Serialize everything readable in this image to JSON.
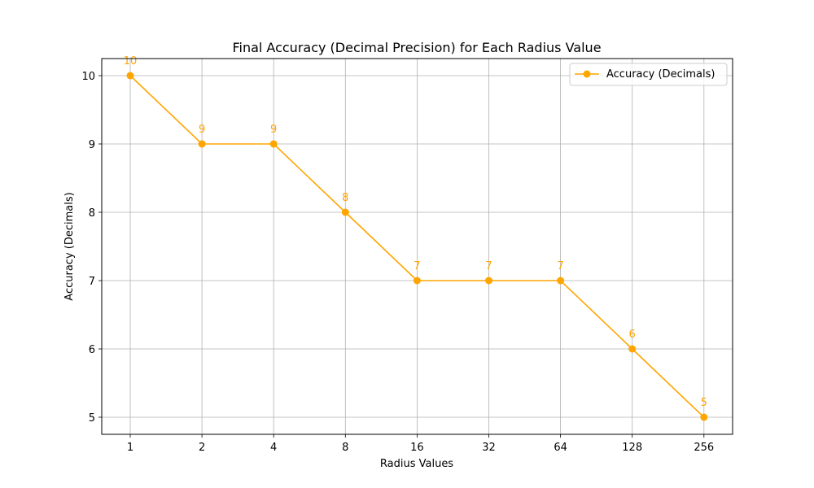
{
  "chart_data": {
    "type": "line",
    "title": "Final Accuracy (Decimal Precision) for Each Radius Value",
    "xlabel": "Radius Values",
    "ylabel": "Accuracy (Decimals)",
    "categories": [
      "1",
      "2",
      "4",
      "8",
      "16",
      "32",
      "64",
      "128",
      "256"
    ],
    "series": [
      {
        "name": "Accuracy (Decimals)",
        "values": [
          10,
          9,
          9,
          8,
          7,
          7,
          7,
          6,
          5
        ],
        "labels": [
          "10",
          "9",
          "9",
          "8",
          "7",
          "7",
          "7",
          "6",
          "5"
        ],
        "color": "#ffa500"
      }
    ],
    "yticks": [
      5,
      6,
      7,
      8,
      9,
      10
    ],
    "ylim": [
      4.75,
      10.25
    ],
    "grid": true,
    "legend": "top-right",
    "marker": "circle"
  }
}
